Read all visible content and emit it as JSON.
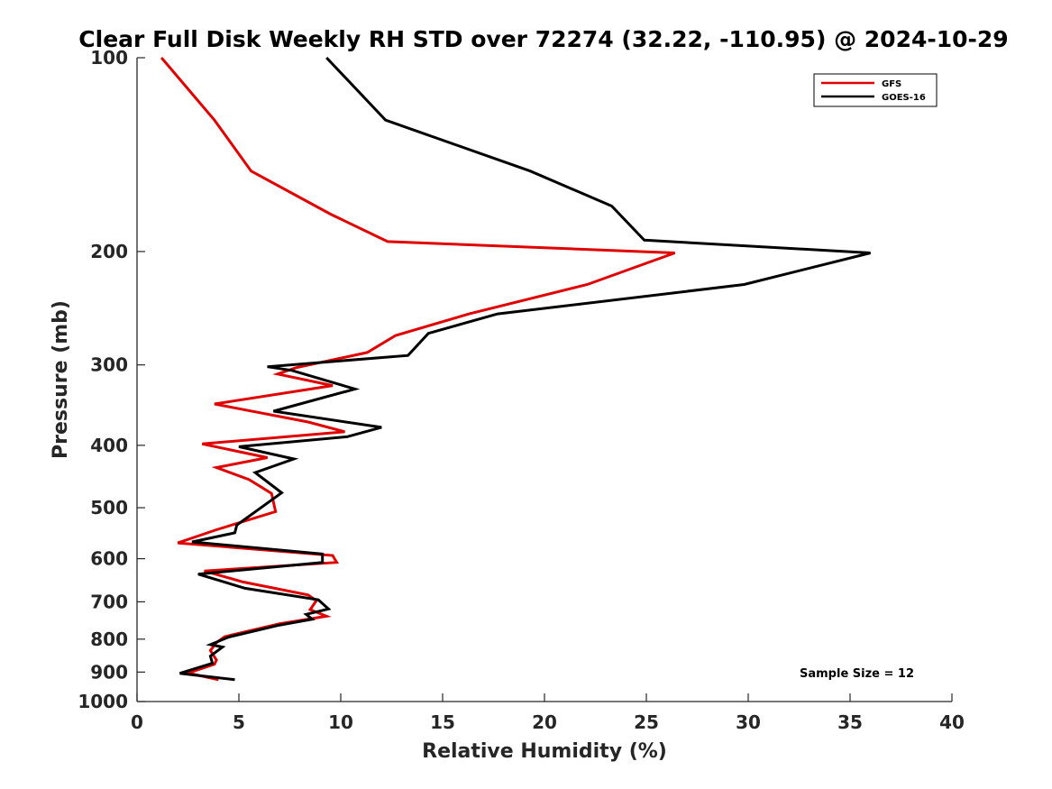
{
  "chart_data": {
    "type": "line",
    "title": "Clear Full Disk Weekly RH STD over 72274 (32.22, -110.95) @ 2024-10-29",
    "xlabel": "Relative Humidity (%)",
    "ylabel": "Pressure (mb)",
    "xlim": [
      0,
      40
    ],
    "ylim": [
      100,
      1000
    ],
    "y_scale": "log",
    "y_reversed": true,
    "x_ticks": [
      0,
      5,
      10,
      15,
      20,
      25,
      30,
      35,
      40
    ],
    "y_ticks": [
      100,
      200,
      300,
      400,
      500,
      600,
      700,
      800,
      900,
      1000
    ],
    "grid": false,
    "legend_position": "top-right",
    "annotation": "Sample Size = 12",
    "series": [
      {
        "name": "GFS",
        "color": "#e00000",
        "points": [
          [
            1.2,
            100
          ],
          [
            3.8,
            125
          ],
          [
            5.6,
            150
          ],
          [
            9.5,
            175
          ],
          [
            12.3,
            193
          ],
          [
            26.4,
            201
          ],
          [
            22.1,
            225
          ],
          [
            16.3,
            250
          ],
          [
            12.7,
            270
          ],
          [
            11.3,
            287
          ],
          [
            7.8,
            303
          ],
          [
            6.9,
            310
          ],
          [
            9.6,
            323
          ],
          [
            3.8,
            345
          ],
          [
            8.4,
            368
          ],
          [
            10.2,
            381
          ],
          [
            3.2,
            398
          ],
          [
            6.4,
            418
          ],
          [
            3.9,
            433
          ],
          [
            5.5,
            452
          ],
          [
            6.6,
            475
          ],
          [
            6.8,
            507
          ],
          [
            3.9,
            541
          ],
          [
            2.0,
            567
          ],
          [
            9.6,
            593
          ],
          [
            9.8,
            608
          ],
          [
            3.3,
            627
          ],
          [
            5.2,
            652
          ],
          [
            8.4,
            683
          ],
          [
            8.8,
            697
          ],
          [
            8.5,
            720
          ],
          [
            9.3,
            737
          ],
          [
            7.0,
            757
          ],
          [
            4.3,
            793
          ],
          [
            3.9,
            810
          ],
          [
            3.6,
            833
          ],
          [
            3.9,
            862
          ],
          [
            3.8,
            875
          ],
          [
            2.5,
            903
          ],
          [
            4.0,
            925
          ]
        ]
      },
      {
        "name": "GOES-16",
        "color": "#000000",
        "points": [
          [
            9.3,
            100
          ],
          [
            12.2,
            125
          ],
          [
            19.3,
            150
          ],
          [
            23.3,
            170
          ],
          [
            24.9,
            192
          ],
          [
            36.0,
            201
          ],
          [
            29.8,
            225
          ],
          [
            17.7,
            250
          ],
          [
            14.3,
            268
          ],
          [
            13.3,
            290
          ],
          [
            6.4,
            302
          ],
          [
            7.6,
            306
          ],
          [
            10.7,
            327
          ],
          [
            6.7,
            354
          ],
          [
            12.0,
            375
          ],
          [
            10.3,
            388
          ],
          [
            5.0,
            402
          ],
          [
            7.7,
            420
          ],
          [
            5.8,
            441
          ],
          [
            7.1,
            474
          ],
          [
            4.9,
            532
          ],
          [
            4.8,
            547
          ],
          [
            2.7,
            565
          ],
          [
            9.1,
            590
          ],
          [
            9.1,
            608
          ],
          [
            3.0,
            634
          ],
          [
            5.3,
            667
          ],
          [
            8.9,
            695
          ],
          [
            9.4,
            718
          ],
          [
            8.3,
            732
          ],
          [
            8.6,
            745
          ],
          [
            6.9,
            762
          ],
          [
            4.5,
            794
          ],
          [
            3.6,
            816
          ],
          [
            4.2,
            823
          ],
          [
            3.6,
            850
          ],
          [
            3.7,
            872
          ],
          [
            2.1,
            904
          ],
          [
            4.8,
            925
          ]
        ]
      }
    ]
  }
}
